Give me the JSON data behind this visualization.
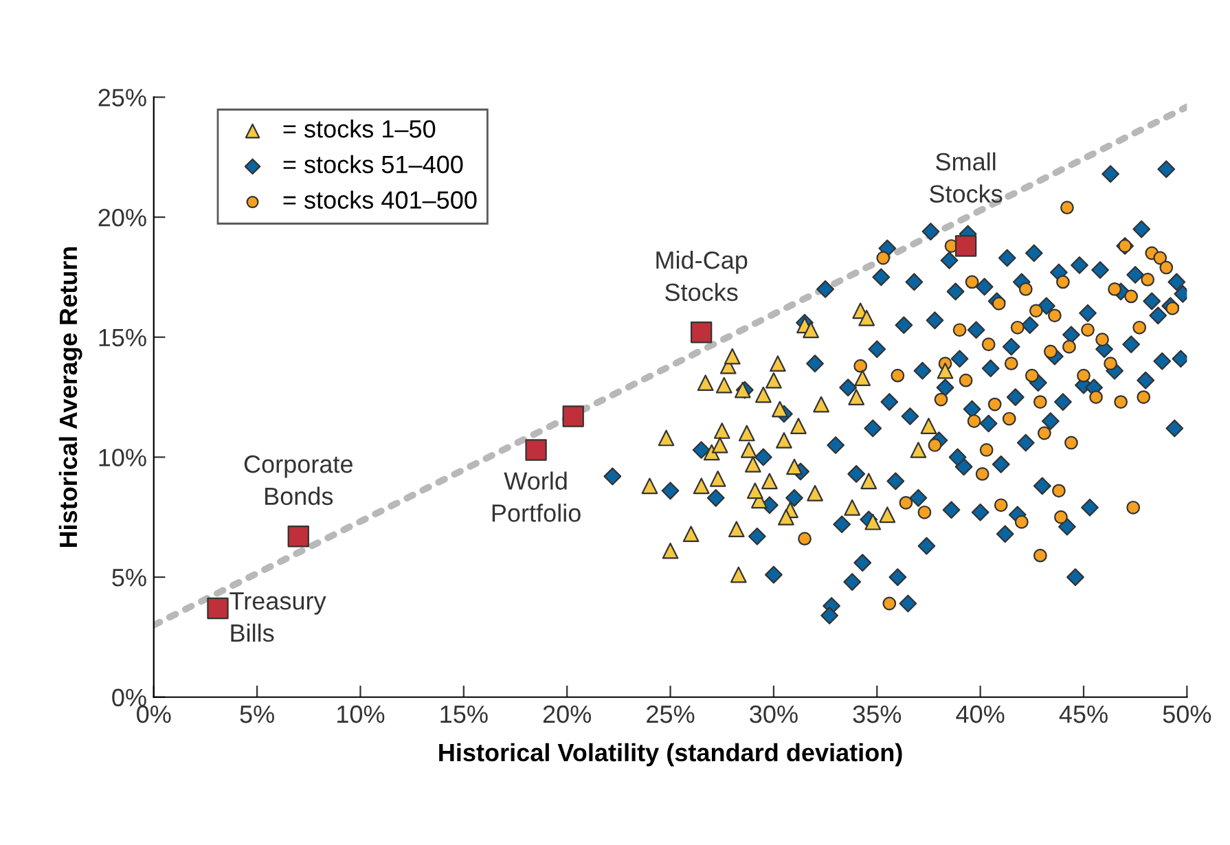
{
  "chart_data": {
    "type": "scatter",
    "xlabel": "Historical Volatility (standard deviation)",
    "ylabel": "Historical Average Return",
    "xlim": [
      0,
      50
    ],
    "ylim": [
      0,
      25
    ],
    "xticks": [
      {
        "value": 0,
        "label": "0%"
      },
      {
        "value": 5,
        "label": "5%"
      },
      {
        "value": 10,
        "label": "10%"
      },
      {
        "value": 15,
        "label": "15%"
      },
      {
        "value": 20,
        "label": "20%"
      },
      {
        "value": 25,
        "label": "25%"
      },
      {
        "value": 30,
        "label": "30%"
      },
      {
        "value": 35,
        "label": "35%"
      },
      {
        "value": 40,
        "label": "40%"
      },
      {
        "value": 45,
        "label": "45%"
      },
      {
        "value": 50,
        "label": "50%"
      }
    ],
    "yticks": [
      {
        "value": 0,
        "label": "0%"
      },
      {
        "value": 5,
        "label": "5%"
      },
      {
        "value": 10,
        "label": "10%"
      },
      {
        "value": 15,
        "label": "15%"
      },
      {
        "value": 20,
        "label": "20%"
      },
      {
        "value": 25,
        "label": "25%"
      }
    ],
    "grid": false,
    "legend": "top left",
    "series": [
      {
        "type": "line",
        "color": "#b8b8b8",
        "line_style": "dotted",
        "marker": "none",
        "x": [
          0,
          50
        ],
        "values": [
          3.0,
          24.6
        ]
      },
      {
        "name": "= stocks 1–50",
        "marker": "triangle",
        "color": "#f5c842",
        "x": [
          24.8,
          24,
          25,
          26,
          26.5,
          27,
          27.3,
          27.5,
          27.6,
          27.8,
          28,
          28.2,
          28.3,
          28.5,
          28.8,
          29,
          29.3,
          29.5,
          29.8,
          30,
          30.2,
          30.3,
          30.5,
          30.8,
          31,
          31.2,
          31.5,
          31.8,
          32,
          32.3,
          34.2,
          34.5,
          34.3,
          34,
          34.6,
          35.5,
          34.8,
          37.5,
          38.3,
          37,
          33.8,
          28.7,
          29.1,
          30.6,
          27.4,
          26.7
        ],
        "values": [
          10.8,
          8.8,
          6.1,
          6.8,
          8.8,
          10.2,
          9.1,
          11.1,
          13.0,
          13.8,
          14.2,
          7.0,
          5.1,
          12.8,
          10.3,
          9.7,
          8.2,
          12.6,
          9.0,
          13.2,
          13.9,
          12.0,
          10.7,
          7.8,
          9.6,
          11.3,
          15.5,
          15.3,
          8.5,
          12.2,
          16.1,
          15.8,
          13.3,
          12.5,
          9.0,
          7.6,
          7.3,
          11.3,
          13.6,
          10.3,
          7.9,
          11.0,
          8.6,
          7.5,
          10.5,
          13.1
        ]
      },
      {
        "name": "= stocks 51–400",
        "marker": "diamond",
        "color": "#0a64a0",
        "x": [
          22.2,
          25,
          26.5,
          27.2,
          28.6,
          29.2,
          29.8,
          30,
          30.5,
          31,
          31.5,
          32,
          32.5,
          32.8,
          32.7,
          33,
          33.3,
          33.6,
          33.8,
          34,
          34.3,
          34.8,
          35,
          35.2,
          35.5,
          35.6,
          35.9,
          36,
          36.3,
          36.6,
          36.8,
          37,
          37.2,
          37.4,
          37.6,
          37.8,
          38,
          38.3,
          38.5,
          38.6,
          38.8,
          39,
          39.2,
          39.4,
          39.6,
          39.8,
          40,
          40.2,
          40.4,
          40.5,
          40.8,
          41,
          41.2,
          41.3,
          41.5,
          41.7,
          42,
          42.2,
          42.4,
          42.6,
          42.8,
          43,
          43.2,
          43.4,
          43.6,
          43.8,
          44,
          44.2,
          44.4,
          44.6,
          44.8,
          45,
          45.2,
          45.3,
          45.5,
          45.8,
          46,
          46.3,
          46.5,
          46.8,
          47,
          47.3,
          47.5,
          47.8,
          48,
          48.3,
          48.6,
          48.8,
          49,
          49.2,
          49.4,
          49.5,
          49.7,
          49.8,
          36.5,
          34.6,
          38.9,
          41.8,
          31.3,
          29.5
        ],
        "values": [
          9.2,
          8.6,
          10.3,
          8.3,
          12.8,
          6.7,
          8.0,
          5.1,
          11.8,
          8.3,
          15.6,
          13.9,
          17.0,
          3.8,
          3.4,
          10.5,
          7.2,
          12.9,
          4.8,
          9.3,
          5.6,
          11.2,
          14.5,
          17.5,
          18.7,
          12.3,
          9.0,
          5.0,
          15.5,
          11.7,
          17.3,
          8.3,
          13.6,
          6.3,
          19.4,
          15.7,
          10.7,
          12.9,
          18.2,
          7.8,
          16.9,
          14.1,
          9.6,
          19.3,
          12.0,
          15.3,
          7.7,
          17.1,
          11.4,
          13.7,
          16.5,
          9.7,
          6.8,
          18.3,
          14.6,
          12.5,
          17.3,
          10.6,
          15.5,
          18.5,
          13.1,
          8.8,
          16.3,
          11.5,
          14.2,
          17.7,
          12.3,
          7.1,
          15.1,
          5.0,
          18.0,
          13.0,
          16.0,
          7.9,
          12.9,
          17.8,
          14.5,
          21.8,
          13.6,
          16.9,
          18.8,
          14.7,
          17.6,
          19.5,
          13.2,
          16.5,
          15.9,
          14.0,
          22.0,
          16.3,
          11.2,
          17.3,
          14.1,
          16.8,
          3.9,
          7.4,
          10.0,
          7.6,
          9.4,
          10.0
        ]
      },
      {
        "name": "= stocks 401–500",
        "marker": "circle",
        "color": "#f5a020",
        "x": [
          31.5,
          34.2,
          35.6,
          35.3,
          36,
          36.4,
          37.3,
          37.8,
          38.1,
          38.6,
          39,
          39.3,
          39.7,
          40.1,
          40.4,
          40.7,
          41,
          41.4,
          41.8,
          42,
          42.2,
          42.5,
          42.7,
          42.9,
          43.1,
          43.4,
          43.6,
          43.8,
          43.9,
          44,
          44.2,
          44.3,
          44.4,
          42.9,
          45,
          45.2,
          45.6,
          45.9,
          46.3,
          46.5,
          46.8,
          47,
          47.3,
          47.4,
          47.7,
          47.9,
          48.1,
          48.3,
          48.7,
          49,
          49.3,
          40.9,
          39.6,
          38.3,
          40.3,
          41.5
        ],
        "values": [
          6.6,
          13.8,
          3.9,
          18.3,
          13.4,
          8.1,
          7.7,
          10.5,
          12.4,
          18.8,
          15.3,
          13.2,
          11.5,
          9.3,
          14.7,
          12.2,
          8.0,
          11.6,
          15.4,
          7.3,
          17.0,
          13.4,
          16.1,
          12.3,
          11.0,
          14.4,
          15.9,
          8.6,
          7.5,
          17.3,
          20.4,
          14.6,
          10.6,
          5.9,
          13.4,
          15.3,
          12.5,
          14.9,
          13.9,
          17.0,
          12.3,
          18.8,
          16.7,
          7.9,
          15.4,
          12.5,
          17.4,
          18.5,
          18.3,
          17.9,
          16.2,
          16.4,
          17.3,
          13.9,
          10.3,
          13.9
        ]
      },
      {
        "marker": "square",
        "color": "#c0303a",
        "x": [
          3.1,
          7.0,
          18.5,
          20.3,
          26.5,
          39.3
        ],
        "values": [
          3.7,
          6.7,
          10.3,
          11.7,
          15.2,
          18.8
        ]
      }
    ],
    "annotations": [
      {
        "text": "Treasury\nBills",
        "x": 3.1,
        "y": 3.7
      },
      {
        "text": "Corporate\nBonds",
        "x": 7.0,
        "y": 6.7
      },
      {
        "text": "World\nPortfolio",
        "x": 18.5,
        "y": 10.3
      },
      {
        "text": "Mid-Cap\nStocks",
        "x": 26.5,
        "y": 15.2
      },
      {
        "text": "Small\nStocks",
        "x": 39.3,
        "y": 18.8
      }
    ]
  }
}
